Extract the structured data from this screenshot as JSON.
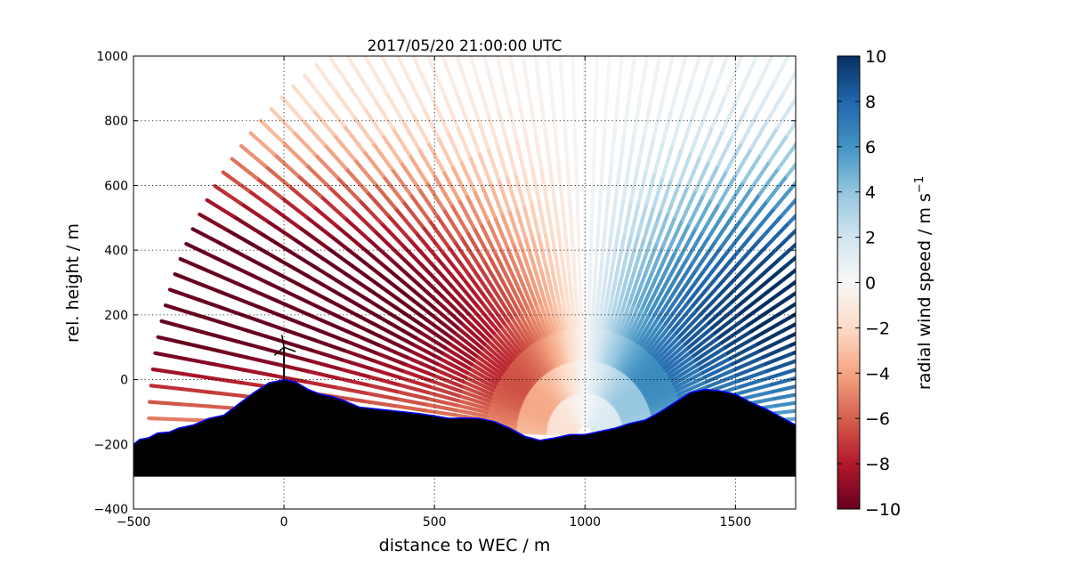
{
  "chart_data": {
    "type": "scatter",
    "title": "2017/05/20 21:00:00 UTC",
    "xlabel": "distance to WEC / m",
    "ylabel": "rel. height / m",
    "xlim": [
      -500,
      1700
    ],
    "ylim": [
      -400,
      1000
    ],
    "xticks": [
      "−500",
      "0",
      "500",
      "1000",
      "1500"
    ],
    "xtick_values": [
      -500,
      0,
      500,
      1000,
      1500
    ],
    "yticks": [
      "−400",
      "−200",
      "0",
      "200",
      "400",
      "600",
      "800",
      "1000"
    ],
    "ytick_values": [
      -400,
      -200,
      0,
      200,
      400,
      600,
      800,
      1000
    ],
    "grid": true,
    "colormap": "RdBu",
    "colorbar": {
      "label": "radial wind speed / m s",
      "label_exponent": "−1",
      "range": [
        -10,
        10
      ],
      "ticks": [
        "−10",
        "−8",
        "−6",
        "−4",
        "−2",
        "0",
        "2",
        "4",
        "6",
        "8",
        "10"
      ],
      "tick_values": [
        -10,
        -8,
        -6,
        -4,
        -2,
        0,
        2,
        4,
        6,
        8,
        10
      ]
    },
    "scan": {
      "origin": [
        1000,
        -170
      ],
      "range_m": [
        30,
        1450
      ],
      "elevation_deg": [
        2,
        178
      ],
      "color_high": "#08306b",
      "color_low": "#67001f"
    },
    "terrain": {
      "base": -300,
      "color": "#000000",
      "outline_color": "#0000ff",
      "points": [
        [
          -500,
          -200
        ],
        [
          -480,
          -185
        ],
        [
          -450,
          -180
        ],
        [
          -420,
          -165
        ],
        [
          -380,
          -162
        ],
        [
          -350,
          -150
        ],
        [
          -300,
          -140
        ],
        [
          -250,
          -120
        ],
        [
          -200,
          -110
        ],
        [
          -150,
          -75
        ],
        [
          -100,
          -40
        ],
        [
          -50,
          -10
        ],
        [
          0,
          0
        ],
        [
          40,
          -8
        ],
        [
          80,
          -30
        ],
        [
          120,
          -45
        ],
        [
          160,
          -52
        ],
        [
          200,
          -65
        ],
        [
          250,
          -85
        ],
        [
          300,
          -90
        ],
        [
          350,
          -95
        ],
        [
          400,
          -100
        ],
        [
          450,
          -105
        ],
        [
          500,
          -112
        ],
        [
          550,
          -120
        ],
        [
          600,
          -118
        ],
        [
          650,
          -120
        ],
        [
          700,
          -130
        ],
        [
          750,
          -150
        ],
        [
          800,
          -175
        ],
        [
          850,
          -188
        ],
        [
          900,
          -180
        ],
        [
          950,
          -170
        ],
        [
          1000,
          -170
        ],
        [
          1050,
          -160
        ],
        [
          1100,
          -150
        ],
        [
          1150,
          -135
        ],
        [
          1200,
          -125
        ],
        [
          1250,
          -100
        ],
        [
          1300,
          -70
        ],
        [
          1350,
          -40
        ],
        [
          1400,
          -30
        ],
        [
          1450,
          -35
        ],
        [
          1500,
          -45
        ],
        [
          1550,
          -70
        ],
        [
          1600,
          -90
        ],
        [
          1650,
          -115
        ],
        [
          1700,
          -140
        ]
      ]
    },
    "turbine": {
      "x": 0,
      "base": 0,
      "hub_height": 100
    }
  }
}
